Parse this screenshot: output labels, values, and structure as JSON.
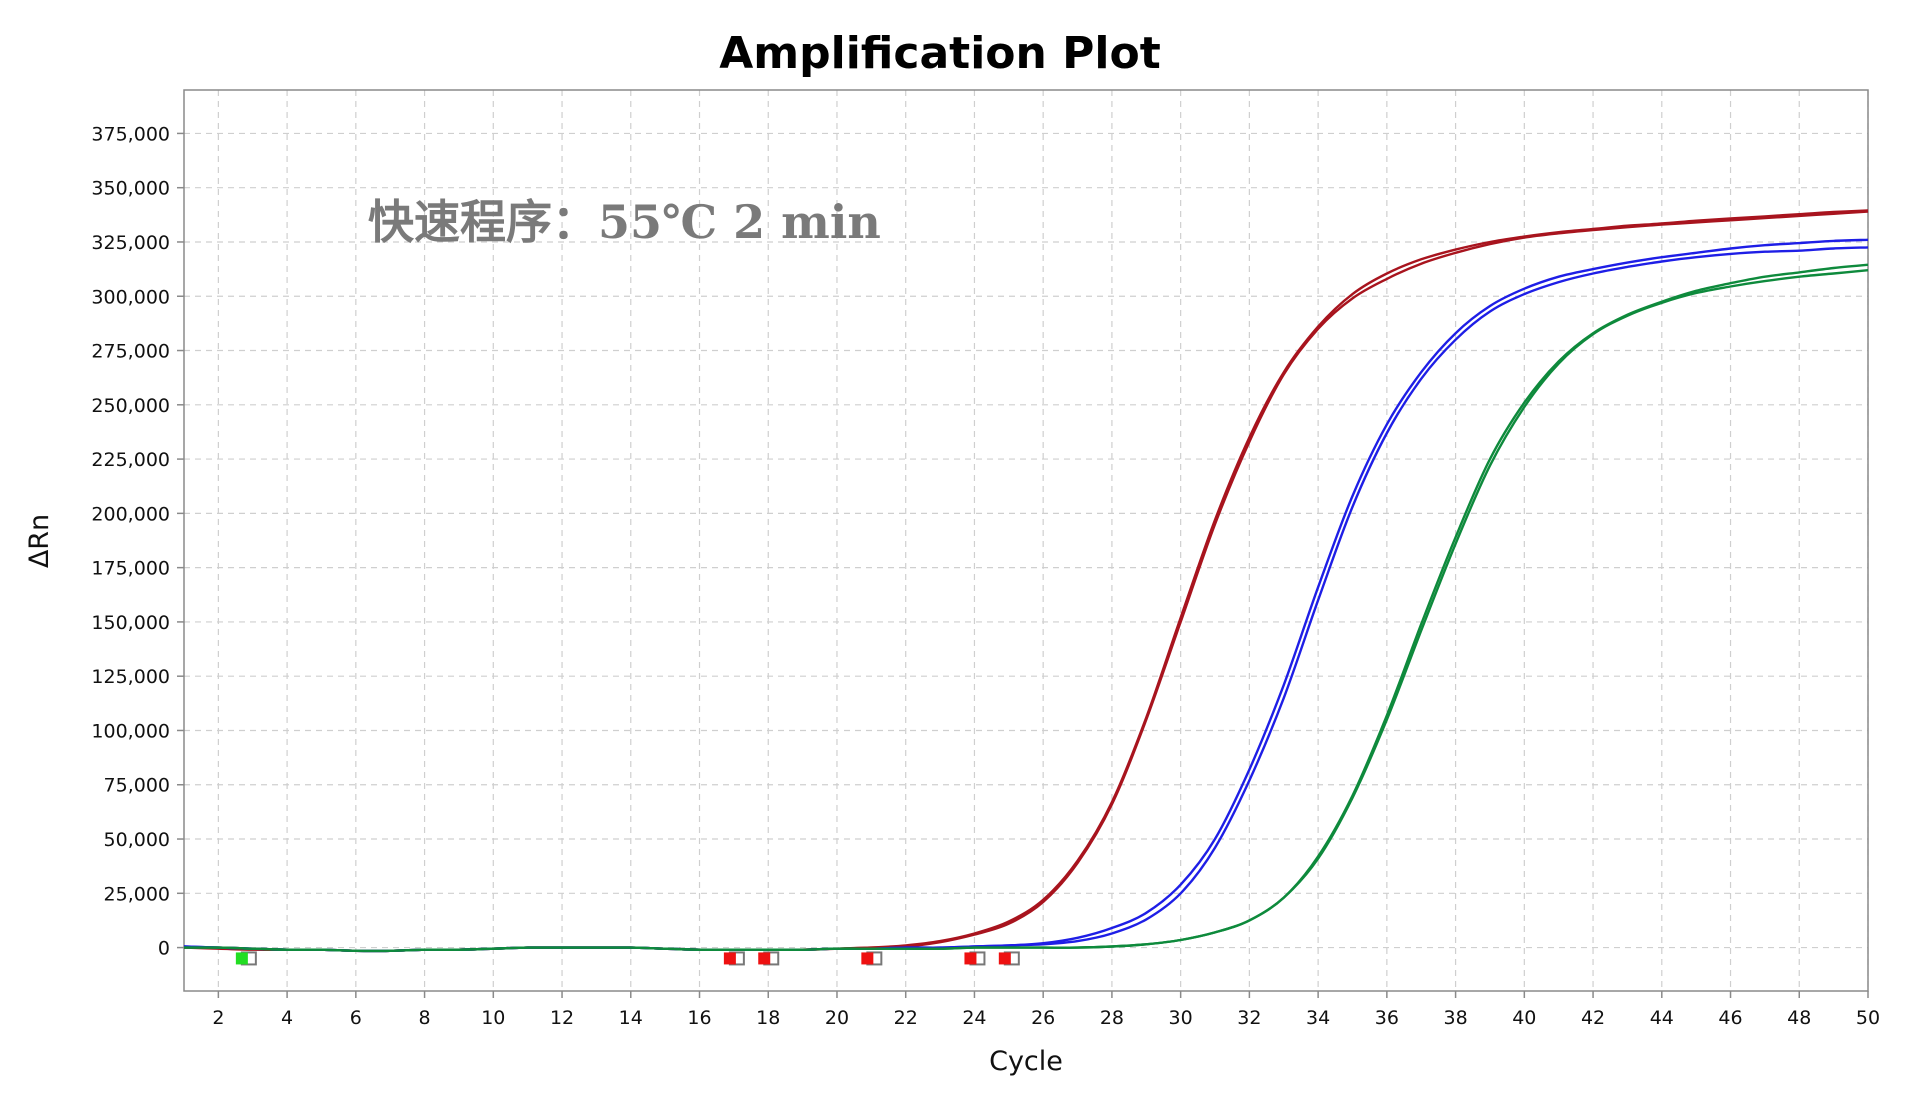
{
  "chart_data": {
    "type": "line",
    "title": "Amplification Plot",
    "annotation": "快速程序：55℃ 2 min",
    "xlabel": "Cycle",
    "ylabel": "ΔRn",
    "xlim": [
      1,
      50
    ],
    "ylim": [
      -20000,
      395000
    ],
    "x_ticks": [
      2,
      4,
      6,
      8,
      10,
      12,
      14,
      16,
      18,
      20,
      22,
      24,
      26,
      28,
      30,
      32,
      34,
      36,
      38,
      40,
      42,
      44,
      46,
      48,
      50
    ],
    "x_tick_labels": [
      "2",
      "4",
      "6",
      "8",
      "10",
      "12",
      "14",
      "16",
      "18",
      "20",
      "22",
      "24",
      "26",
      "28",
      "30",
      "32",
      "34",
      "36",
      "38",
      "40",
      "42",
      "44",
      "46",
      "48",
      "50"
    ],
    "y_ticks": [
      0,
      25000,
      50000,
      75000,
      100000,
      125000,
      150000,
      175000,
      200000,
      225000,
      250000,
      275000,
      300000,
      325000,
      350000,
      375000
    ],
    "y_tick_labels": [
      "0",
      "25,000",
      "50,000",
      "75,000",
      "100,000",
      "125,000",
      "150,000",
      "175,000",
      "200,000",
      "225,000",
      "250,000",
      "275,000",
      "300,000",
      "325,000",
      "350,000",
      "375,000"
    ],
    "grid": true,
    "x": [
      1,
      2,
      3,
      4,
      5,
      6,
      7,
      8,
      9,
      10,
      11,
      12,
      13,
      14,
      15,
      16,
      17,
      18,
      19,
      20,
      21,
      22,
      23,
      24,
      25,
      26,
      27,
      28,
      29,
      30,
      31,
      32,
      33,
      34,
      35,
      36,
      37,
      38,
      39,
      40,
      41,
      42,
      43,
      44,
      45,
      46,
      47,
      48,
      49,
      50
    ],
    "series": [
      {
        "color": "#a8141e",
        "values": [
          0,
          0,
          -500,
          -1000,
          -1000,
          -1500,
          -1500,
          -1000,
          -1000,
          -500,
          0,
          0,
          0,
          0,
          -500,
          -1000,
          -1000,
          -1000,
          -1000,
          -500,
          0,
          500,
          2500,
          6000,
          11000,
          21000,
          39000,
          66000,
          105000,
          150000,
          195000,
          233000,
          264000,
          285000,
          299000,
          308000,
          315000,
          320000,
          324000,
          327000,
          329000,
          330500,
          331800,
          333000,
          334000,
          335000,
          336000,
          337000,
          338000,
          339000
        ]
      },
      {
        "color": "#a8141e",
        "values": [
          0,
          -500,
          -1000,
          -1000,
          -1000,
          -1500,
          -1500,
          -1000,
          -1000,
          -500,
          0,
          0,
          0,
          0,
          -500,
          -1000,
          -1000,
          -1000,
          -1000,
          -500,
          0,
          1000,
          3000,
          6500,
          12000,
          22000,
          40000,
          67000,
          106000,
          152000,
          197000,
          235000,
          265000,
          286000,
          301000,
          310500,
          317000,
          321500,
          325000,
          327500,
          329500,
          331000,
          332500,
          333500,
          334800,
          335800,
          336800,
          337800,
          338800,
          339500
        ]
      },
      {
        "color": "#1e1ee6",
        "values": [
          500,
          0,
          -500,
          -1000,
          -1000,
          -1500,
          -1500,
          -1000,
          -1000,
          -500,
          0,
          0,
          0,
          0,
          -500,
          -1000,
          -1000,
          -1000,
          -1000,
          -500,
          -500,
          0,
          0,
          500,
          1000,
          1500,
          3000,
          6500,
          13000,
          25000,
          46000,
          77000,
          115000,
          160000,
          203000,
          237000,
          262000,
          280000,
          293000,
          301000,
          306500,
          310500,
          313500,
          316000,
          318000,
          319500,
          320500,
          321000,
          322000,
          322500
        ]
      },
      {
        "color": "#1e1ee6",
        "values": [
          500,
          0,
          -500,
          -1000,
          -1000,
          -1500,
          -1500,
          -1000,
          -1000,
          -500,
          0,
          0,
          0,
          0,
          -500,
          -1000,
          -1000,
          -1000,
          -1000,
          -500,
          -500,
          0,
          0,
          500,
          1000,
          2000,
          4500,
          9000,
          16000,
          29000,
          50000,
          82000,
          121000,
          166000,
          208000,
          241000,
          265000,
          283000,
          295500,
          303500,
          309000,
          312500,
          315500,
          318000,
          320000,
          322000,
          323500,
          324500,
          325500,
          326000
        ]
      },
      {
        "color": "#0e8a3c",
        "values": [
          0,
          0,
          -500,
          -1000,
          -1000,
          -1500,
          -1500,
          -1000,
          -1000,
          -500,
          0,
          0,
          0,
          0,
          -500,
          -1000,
          -1000,
          -1000,
          -1000,
          -500,
          -500,
          -500,
          -500,
          0,
          0,
          0,
          0,
          500,
          1500,
          3500,
          7000,
          12500,
          23000,
          41000,
          69000,
          105000,
          146000,
          186000,
          222000,
          249000,
          269000,
          282500,
          291000,
          297000,
          301500,
          304500,
          307000,
          309000,
          310500,
          312000
        ]
      },
      {
        "color": "#0e8a3c",
        "values": [
          0,
          0,
          -500,
          -1000,
          -1000,
          -1500,
          -1500,
          -1000,
          -1000,
          -500,
          0,
          0,
          0,
          0,
          -500,
          -1000,
          -1000,
          -1000,
          -1000,
          -500,
          -500,
          -500,
          -500,
          0,
          0,
          0,
          0,
          500,
          1500,
          3500,
          7000,
          12500,
          23000,
          42000,
          70000,
          107000,
          149000,
          189000,
          225000,
          251000,
          270000,
          283000,
          291500,
          297500,
          302500,
          306000,
          309000,
          311000,
          313000,
          314500
        ]
      }
    ],
    "markers": [
      {
        "x": 2.8,
        "color": "#22dd22"
      },
      {
        "x": 17.0,
        "color": "#ee1111"
      },
      {
        "x": 18.0,
        "color": "#ee1111"
      },
      {
        "x": 21.0,
        "color": "#ee1111"
      },
      {
        "x": 24.0,
        "color": "#ee1111"
      },
      {
        "x": 25.0,
        "color": "#ee1111"
      }
    ]
  }
}
